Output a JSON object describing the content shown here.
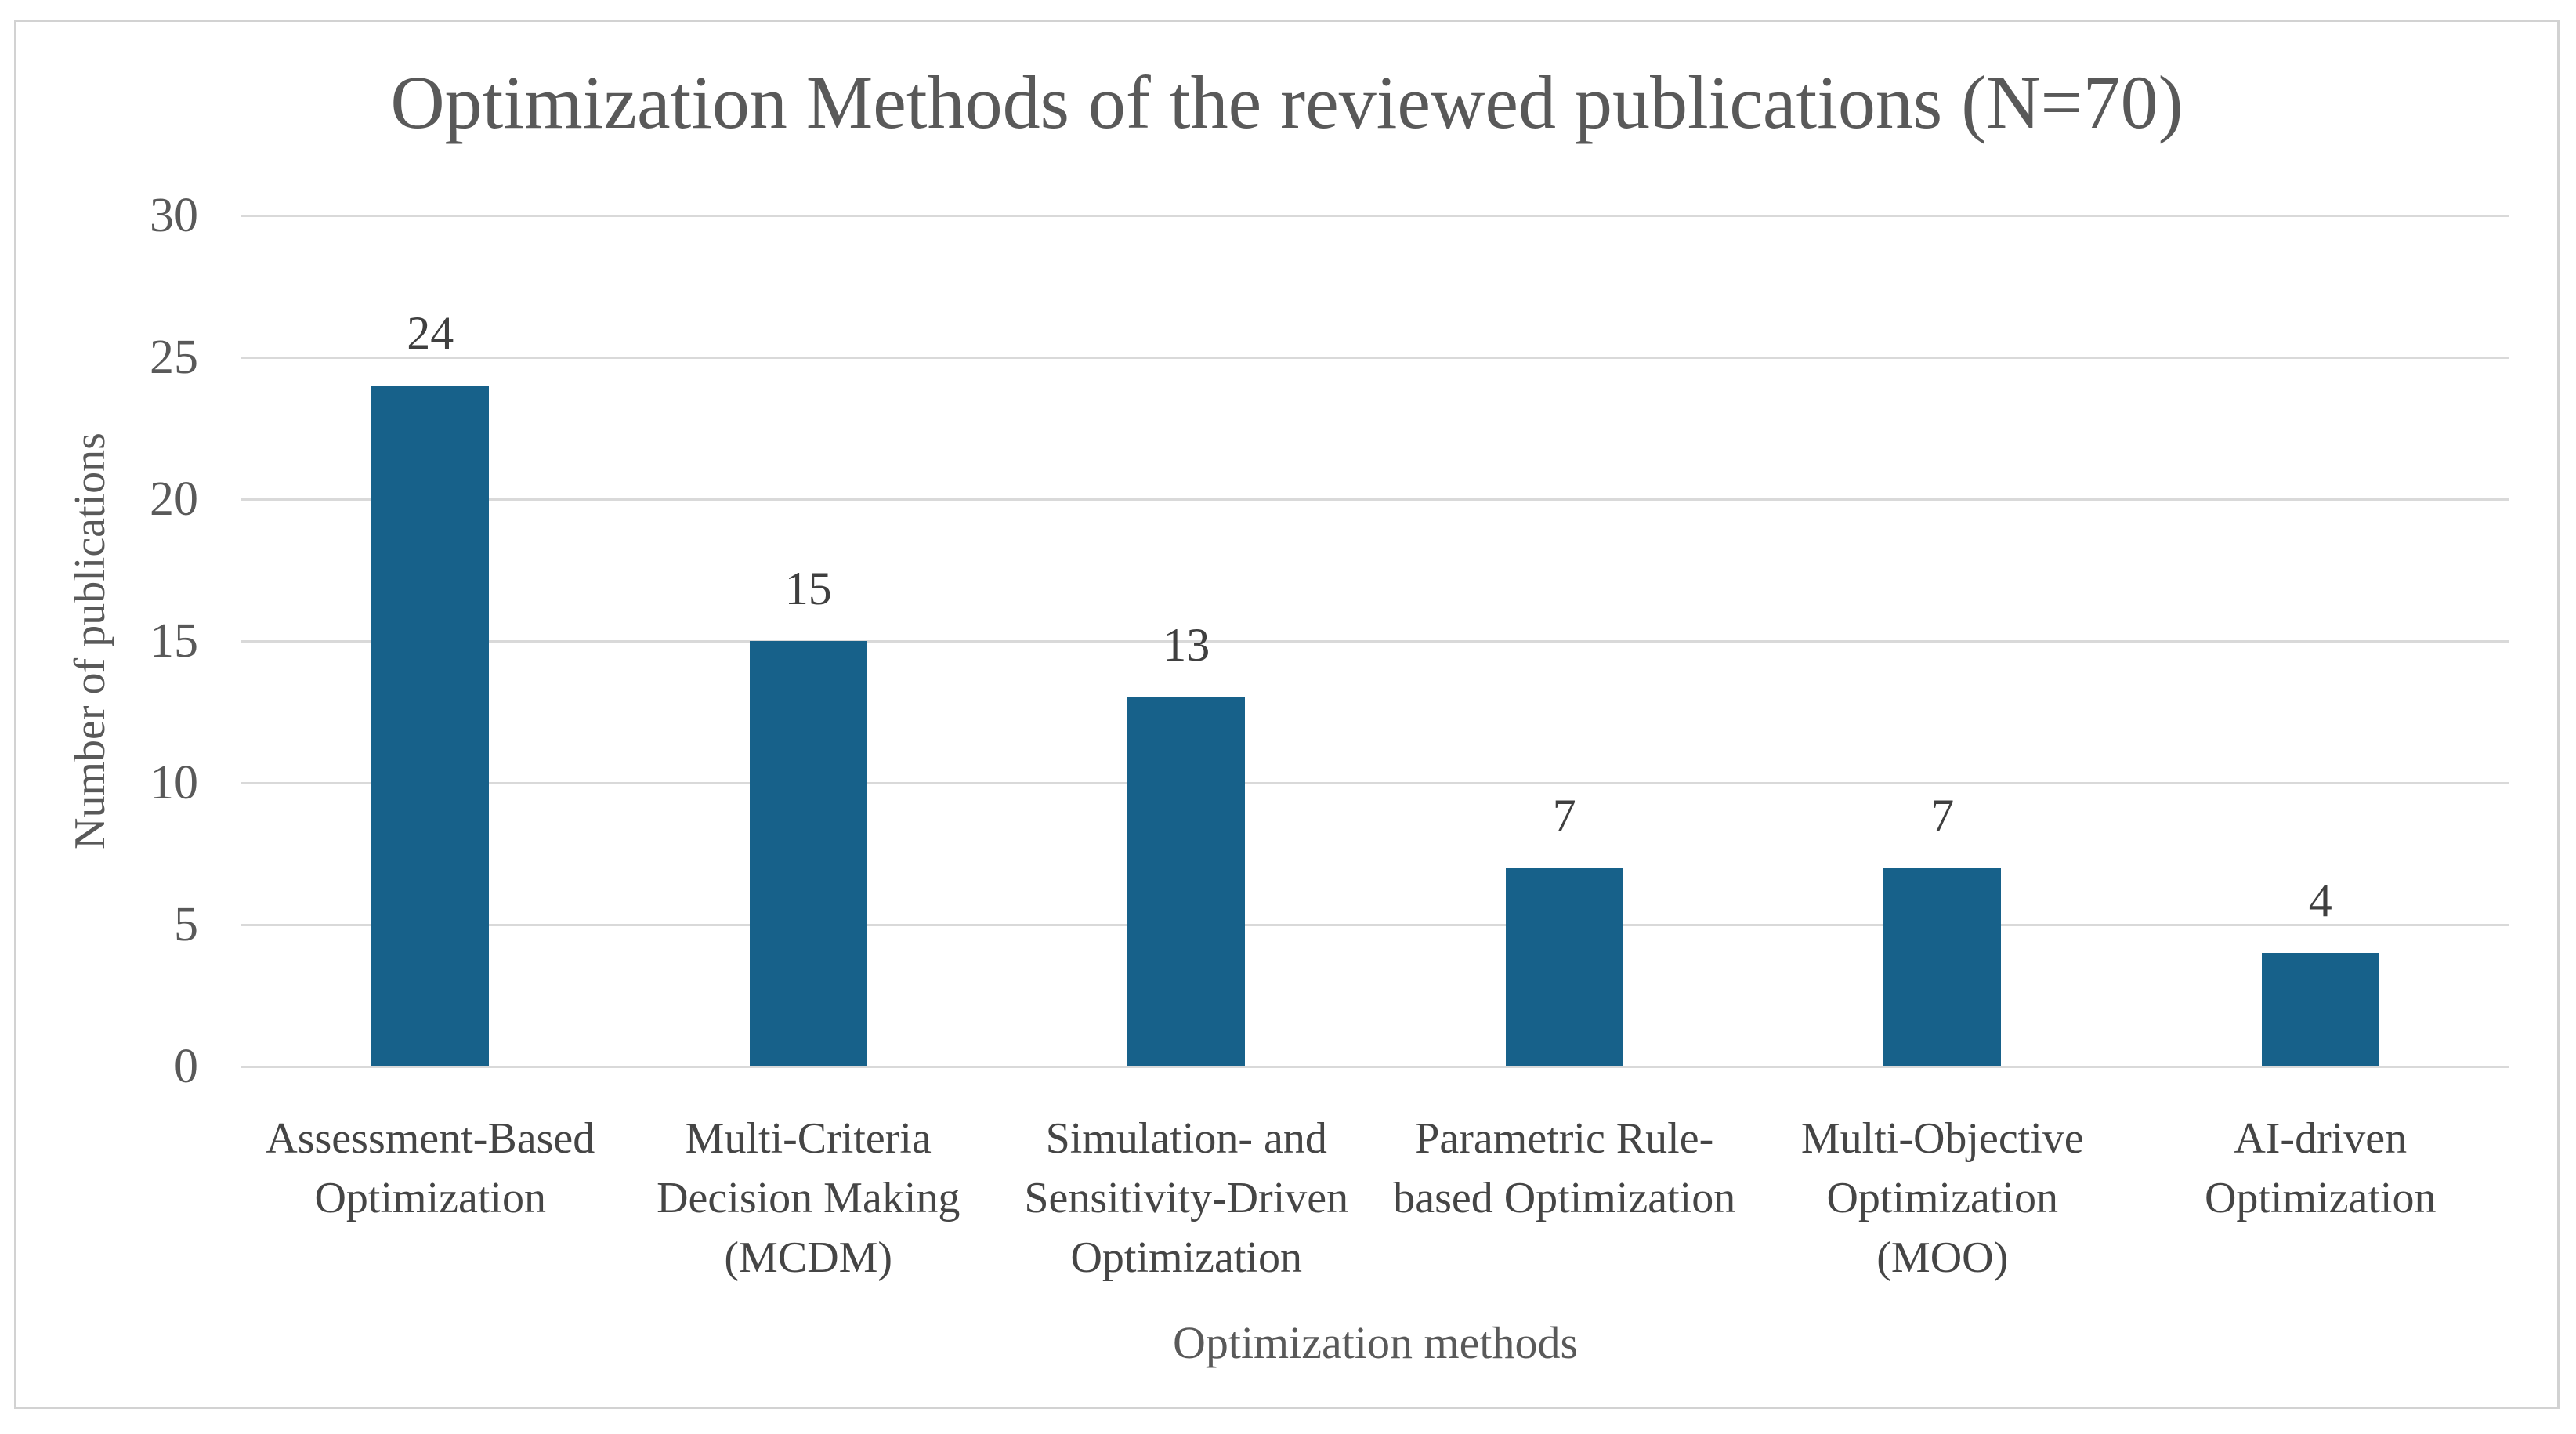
{
  "chart_data": {
    "type": "bar",
    "title": "Optimization Methods of the reviewed publications (N=70)",
    "xlabel": "Optimization methods",
    "ylabel": "Number of publications",
    "categories": [
      "Assessment-Based Optimization",
      "Multi-Criteria Decision Making (MCDM)",
      "Simulation- and Sensitivity-Driven Optimization",
      "Parametric Rule-based Optimization",
      "Multi-Objective Optimization (MOO)",
      "AI-driven Optimization"
    ],
    "category_lines": [
      [
        "Assessment-Based",
        "Optimization"
      ],
      [
        "Multi-Criteria",
        "Decision Making",
        "(MCDM)"
      ],
      [
        "Simulation- and",
        "Sensitivity-Driven",
        "Optimization"
      ],
      [
        "Parametric Rule-",
        "based Optimization"
      ],
      [
        "Multi-Objective",
        "Optimization",
        "(MOO)"
      ],
      [
        "AI-driven",
        "Optimization"
      ]
    ],
    "values": [
      24,
      15,
      13,
      7,
      7,
      4
    ],
    "data_labels": [
      "24",
      "15",
      "13",
      "7",
      "7",
      "4"
    ],
    "ylim": [
      0,
      30
    ],
    "yticks": [
      0,
      5,
      10,
      15,
      20,
      25,
      30
    ],
    "grid": true,
    "legend": false,
    "colors": {
      "bar": "#17618A",
      "gridline": "#D9D9D9",
      "border": "#D2D2D2",
      "title_text": "#595959",
      "data_label_text": "#3F3F3F",
      "category_text": "#454545",
      "background": "#FFFFFF"
    }
  }
}
